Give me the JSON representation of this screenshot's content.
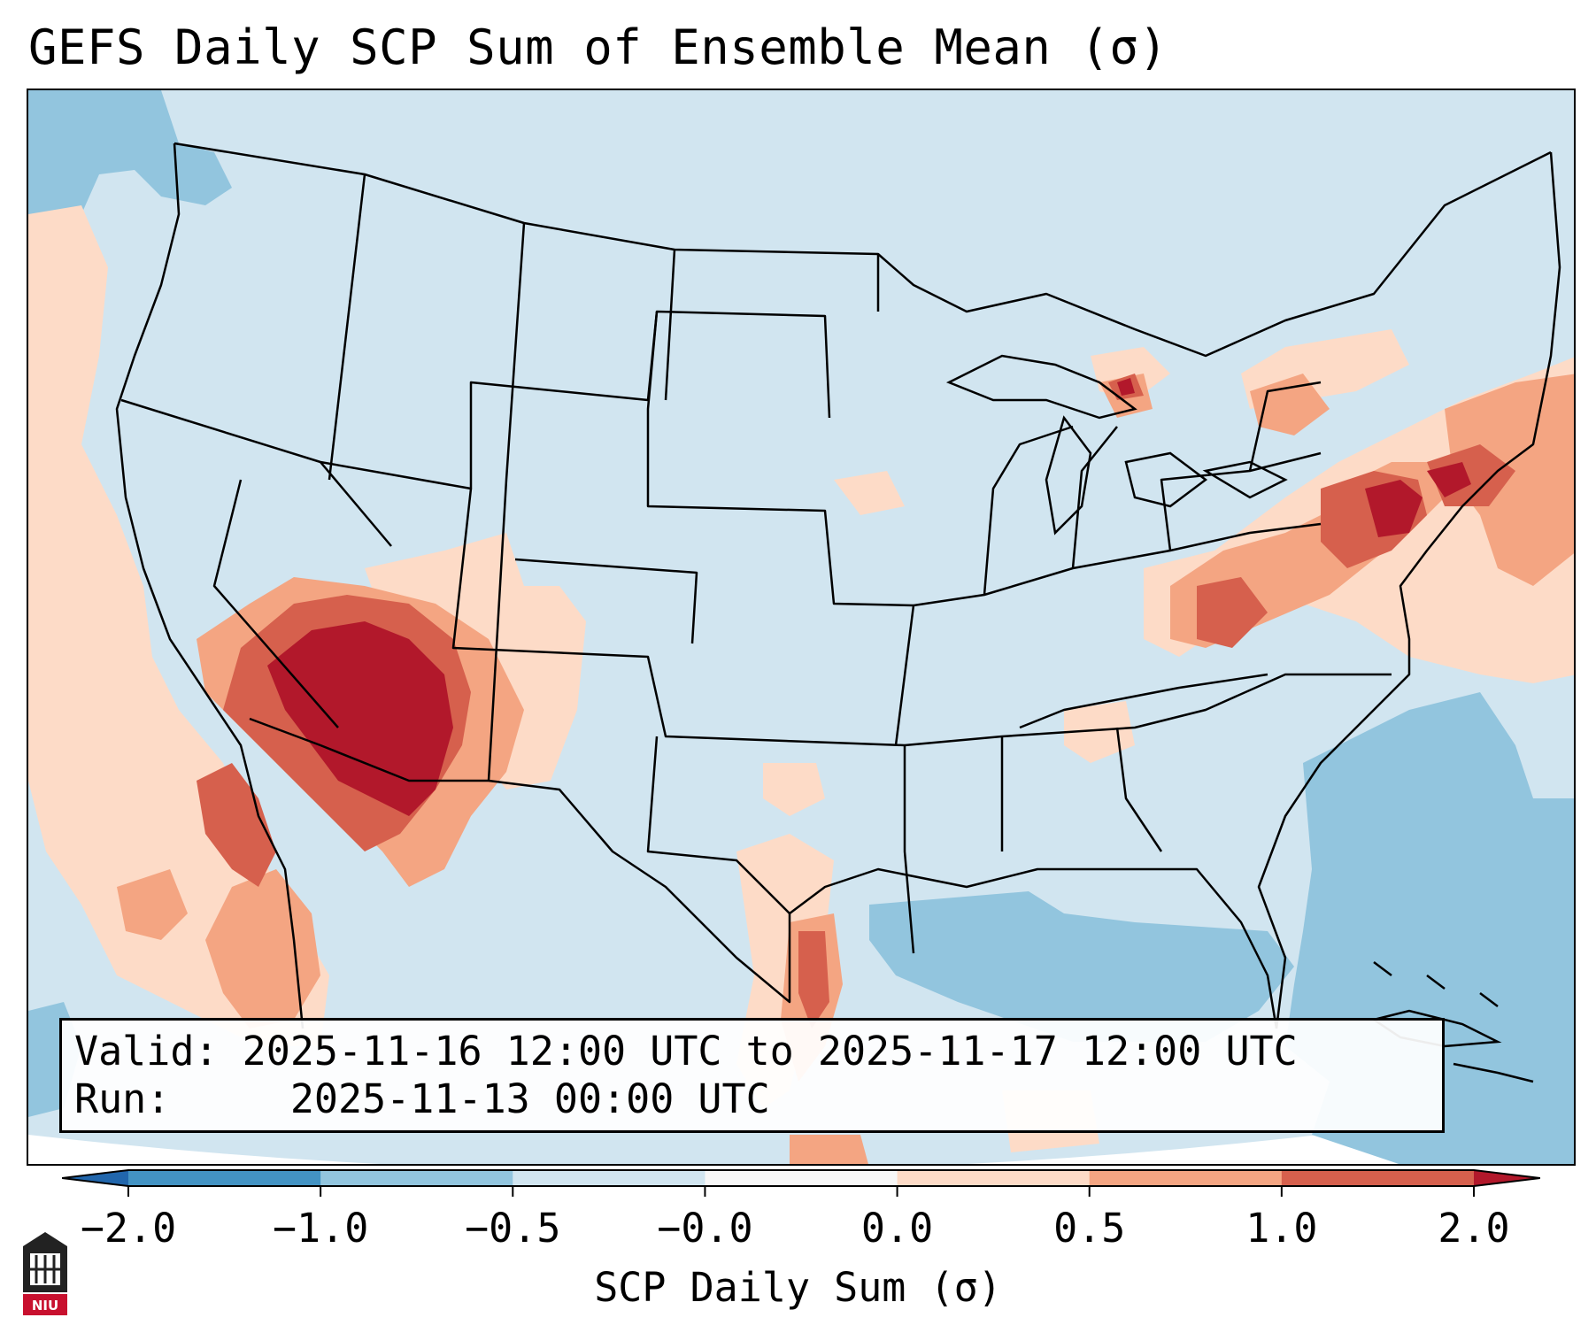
{
  "figure": {
    "title": "GEFS Daily SCP Sum of Ensemble Mean (σ)"
  },
  "info_box": {
    "valid_label": "Valid:",
    "valid_value": "2025-11-16 12:00 UTC to 2025-11-17 12:00 UTC",
    "run_label": "Run:",
    "run_value": "2025-11-13 00:00 UTC"
  },
  "colorbar": {
    "label": "SCP Daily Sum (σ)",
    "ticks": [
      "−2.0",
      "−1.0",
      "−0.5",
      "−0.0",
      "0.0",
      "0.5",
      "1.0",
      "2.0"
    ],
    "bins": [
      {
        "range": "< -2.0",
        "color": "#2166ac"
      },
      {
        "range": "-2.0 to -1.0",
        "color": "#4393c3"
      },
      {
        "range": "-1.0 to -0.5",
        "color": "#92c5de"
      },
      {
        "range": "-0.5 to -0.0",
        "color": "#d1e5f0"
      },
      {
        "range": "-0.0 to 0.0",
        "color": "#f7f7f7"
      },
      {
        "range": "0.0 to 0.5",
        "color": "#fddbc7"
      },
      {
        "range": "0.5 to 1.0",
        "color": "#f4a582"
      },
      {
        "range": "1.0 to 2.0",
        "color": "#d6604d"
      },
      {
        "range": "> 2.0",
        "color": "#b2182b"
      }
    ]
  },
  "map_data": {
    "region": "Contiguous United States",
    "highlights": [
      {
        "area": "Arizona / southern Utah / western New Mexico",
        "level": "> 2.0"
      },
      {
        "area": "Baja California and Gulf of California",
        "level": "0.5 to 2.0"
      },
      {
        "area": "Mid-Atlantic / Northeast (PA, NJ, southern New England)",
        "level": "1.0 to 2.0"
      },
      {
        "area": "Appalachians (VA, WV, TN)",
        "level": "0.5 to 1.0"
      },
      {
        "area": "South Texas coast",
        "level": "0.5 to 2.0"
      },
      {
        "area": "Gulf of Mexico and western Atlantic",
        "level": "-1.0 to -0.5"
      }
    ],
    "colors": {
      "background": "#d1e5f0",
      "ocean_negative": "#92c5de",
      "outlines": "#000000"
    }
  },
  "logo": {
    "text": "NIU"
  }
}
